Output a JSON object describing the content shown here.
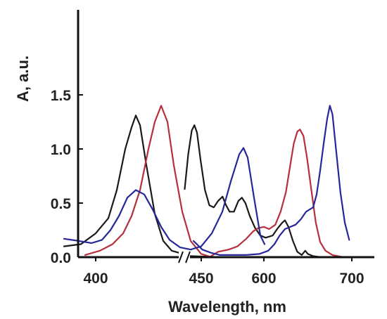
{
  "chart_data": {
    "type": "line",
    "title": "",
    "xlabel": "Wavelength, nm",
    "ylabel": "A, a.u.",
    "ylim": [
      0,
      1.6
    ],
    "yticks": [
      "0.0",
      "0.5",
      "1.0",
      "1.5"
    ],
    "xticks": [
      "400",
      "450",
      "600",
      "700"
    ],
    "x_axis_break": "between ~480 and ~510 nm (broken axis)",
    "xlim_left_segment": [
      385,
      480
    ],
    "xlim_right_segment": [
      510,
      740
    ],
    "grid": false,
    "legend": "none",
    "colors": {
      "black": "#1a1a1a",
      "red": "#b5303c",
      "blue": "#27279a"
    },
    "series": [
      {
        "color": "#1a1a1a",
        "segment": "left",
        "points": [
          [
            385,
            0.1
          ],
          [
            393,
            0.12
          ],
          [
            400,
            0.22
          ],
          [
            406,
            0.36
          ],
          [
            410,
            0.62
          ],
          [
            414,
            1.0
          ],
          [
            417,
            1.2
          ],
          [
            419,
            1.31
          ],
          [
            421,
            1.22
          ],
          [
            424,
            0.85
          ],
          [
            428,
            0.4
          ],
          [
            432,
            0.15
          ],
          [
            436,
            0.06
          ],
          [
            445,
            0.01
          ],
          [
            460,
            0
          ]
        ]
      },
      {
        "color": "#1a1a1a",
        "segment": "right",
        "points": [
          [
            510,
            0.63
          ],
          [
            514,
            0.95
          ],
          [
            518,
            1.17
          ],
          [
            521,
            1.22
          ],
          [
            524,
            1.15
          ],
          [
            528,
            0.9
          ],
          [
            533,
            0.62
          ],
          [
            538,
            0.48
          ],
          [
            543,
            0.46
          ],
          [
            548,
            0.52
          ],
          [
            553,
            0.56
          ],
          [
            557,
            0.48
          ],
          [
            561,
            0.42
          ],
          [
            566,
            0.42
          ],
          [
            571,
            0.52
          ],
          [
            575,
            0.55
          ],
          [
            579,
            0.5
          ],
          [
            584,
            0.38
          ],
          [
            590,
            0.27
          ],
          [
            596,
            0.2
          ],
          [
            602,
            0.18
          ],
          [
            610,
            0.2
          ],
          [
            616,
            0.27
          ],
          [
            621,
            0.32
          ],
          [
            624,
            0.34
          ],
          [
            628,
            0.28
          ],
          [
            633,
            0.15
          ],
          [
            638,
            0.05
          ],
          [
            643,
            0.02
          ],
          [
            647,
            0.06
          ],
          [
            650,
            0.03
          ],
          [
            656,
            0.01
          ],
          [
            665,
            0
          ]
        ]
      },
      {
        "color": "#b5303c",
        "segment": "left",
        "points": [
          [
            395,
            0.02
          ],
          [
            402,
            0.06
          ],
          [
            408,
            0.12
          ],
          [
            413,
            0.22
          ],
          [
            417,
            0.38
          ],
          [
            421,
            0.62
          ],
          [
            425,
            1.0
          ],
          [
            428,
            1.25
          ],
          [
            431,
            1.4
          ],
          [
            434,
            1.25
          ],
          [
            437,
            0.85
          ],
          [
            441,
            0.42
          ],
          [
            445,
            0.15
          ],
          [
            450,
            0.03
          ],
          [
            455,
            0
          ]
        ]
      },
      {
        "color": "#b5303c",
        "segment": "right",
        "points": [
          [
            540,
            0.01
          ],
          [
            548,
            0.05
          ],
          [
            560,
            0.07
          ],
          [
            570,
            0.1
          ],
          [
            580,
            0.17
          ],
          [
            588,
            0.24
          ],
          [
            594,
            0.27
          ],
          [
            600,
            0.28
          ],
          [
            606,
            0.26
          ],
          [
            613,
            0.3
          ],
          [
            619,
            0.42
          ],
          [
            625,
            0.6
          ],
          [
            630,
            0.85
          ],
          [
            634,
            1.05
          ],
          [
            638,
            1.16
          ],
          [
            641,
            1.18
          ],
          [
            645,
            1.12
          ],
          [
            649,
            0.92
          ],
          [
            654,
            0.62
          ],
          [
            659,
            0.32
          ],
          [
            664,
            0.14
          ],
          [
            670,
            0.06
          ],
          [
            678,
            0.02
          ],
          [
            690,
            0
          ]
        ]
      },
      {
        "color": "#27279a",
        "segment": "left",
        "points": [
          [
            385,
            0.17
          ],
          [
            392,
            0.15
          ],
          [
            398,
            0.13
          ],
          [
            403,
            0.16
          ],
          [
            407,
            0.25
          ],
          [
            411,
            0.38
          ],
          [
            415,
            0.55
          ],
          [
            419,
            0.62
          ],
          [
            423,
            0.58
          ],
          [
            427,
            0.44
          ],
          [
            431,
            0.28
          ],
          [
            435,
            0.16
          ],
          [
            440,
            0.09
          ],
          [
            445,
            0.07
          ],
          [
            450,
            0.1
          ],
          [
            455,
            0.22
          ],
          [
            460,
            0.42
          ],
          [
            464,
            0.7
          ],
          [
            468,
            0.95
          ],
          [
            470,
            1.01
          ],
          [
            472,
            0.92
          ],
          [
            475,
            0.55
          ],
          [
            478,
            0.2
          ],
          [
            480,
            0.12
          ]
        ]
      },
      {
        "color": "#27279a",
        "segment": "right",
        "points": [
          [
            520,
            0.15
          ],
          [
            530,
            0.07
          ],
          [
            540,
            0.04
          ],
          [
            550,
            0.02
          ],
          [
            565,
            0.02
          ],
          [
            580,
            0.02
          ],
          [
            595,
            0.03
          ],
          [
            605,
            0.06
          ],
          [
            612,
            0.12
          ],
          [
            618,
            0.2
          ],
          [
            624,
            0.26
          ],
          [
            630,
            0.28
          ],
          [
            636,
            0.3
          ],
          [
            642,
            0.35
          ],
          [
            648,
            0.42
          ],
          [
            652,
            0.44
          ],
          [
            656,
            0.46
          ],
          [
            660,
            0.58
          ],
          [
            664,
            0.8
          ],
          [
            668,
            1.05
          ],
          [
            672,
            1.28
          ],
          [
            675,
            1.4
          ],
          [
            678,
            1.32
          ],
          [
            682,
            1.0
          ],
          [
            687,
            0.6
          ],
          [
            692,
            0.32
          ],
          [
            697,
            0.16
          ]
        ]
      }
    ]
  }
}
